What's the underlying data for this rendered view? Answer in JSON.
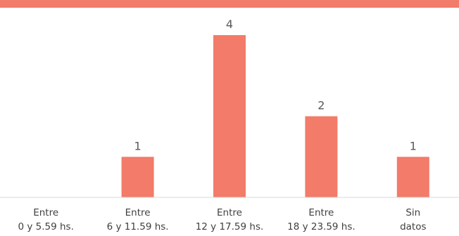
{
  "chart_data": {
    "type": "bar",
    "categories": [
      [
        "Entre",
        "0 y 5.59 hs."
      ],
      [
        "Entre",
        "6 y 11.59 hs."
      ],
      [
        "Entre",
        "12 y 17.59 hs."
      ],
      [
        "Entre",
        "18 y 23.59 hs."
      ],
      [
        "Sin",
        "datos"
      ]
    ],
    "values": [
      0,
      1,
      4,
      2,
      1
    ],
    "data_labels": [
      "",
      "1",
      "4",
      "2",
      "1"
    ],
    "title": "",
    "xlabel": "",
    "ylabel": "",
    "ylim": [
      0,
      4
    ],
    "grid": false,
    "legend": "none",
    "colors": {
      "bar": "#f27b69",
      "band": "#f07c69",
      "baseline": "#d9d9d9"
    }
  }
}
